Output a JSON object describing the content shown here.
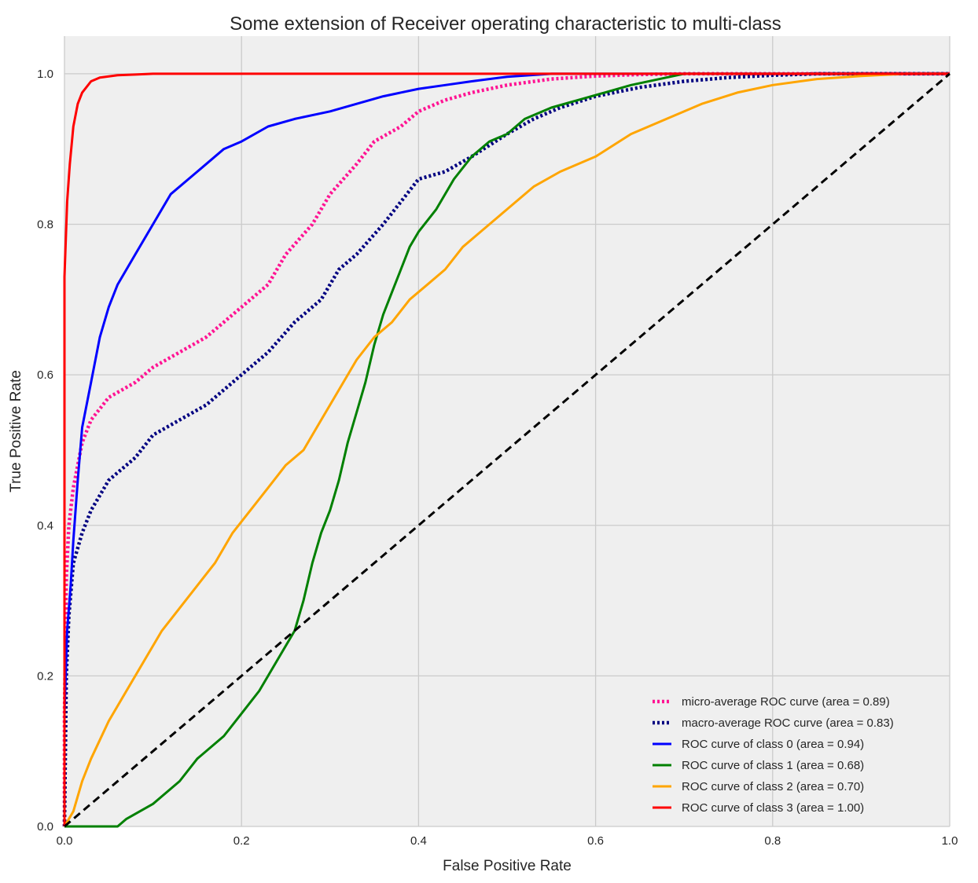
{
  "chart_data": {
    "type": "line",
    "title": "Some extension of Receiver operating characteristic to multi-class",
    "xlabel": "False Positive Rate",
    "ylabel": "True Positive Rate",
    "xlim": [
      0.0,
      1.0
    ],
    "ylim": [
      0.0,
      1.05
    ],
    "xticks": [
      0.0,
      0.2,
      0.4,
      0.6,
      0.8,
      1.0
    ],
    "yticks": [
      0.0,
      0.2,
      0.4,
      0.6,
      0.8,
      1.0
    ],
    "xtick_labels": [
      "0.0",
      "0.2",
      "0.4",
      "0.6",
      "0.8",
      "1.0"
    ],
    "ytick_labels": [
      "0.0",
      "0.2",
      "0.4",
      "0.6",
      "0.8",
      "1.0"
    ],
    "grid": true,
    "legend_position": "lower-right",
    "background": "#efefef",
    "series": [
      {
        "name": "micro-average ROC curve (area = 0.89)",
        "color": "#ff1493",
        "style": "dotted",
        "x": [
          0.0,
          0.0,
          0.002,
          0.005,
          0.01,
          0.015,
          0.02,
          0.03,
          0.05,
          0.08,
          0.1,
          0.13,
          0.16,
          0.18,
          0.2,
          0.23,
          0.25,
          0.28,
          0.3,
          0.33,
          0.35,
          0.38,
          0.4,
          0.43,
          0.46,
          0.5,
          0.55,
          0.6,
          0.65,
          0.7,
          0.75,
          0.8,
          0.9,
          1.0
        ],
        "y": [
          0.0,
          0.15,
          0.33,
          0.4,
          0.45,
          0.48,
          0.51,
          0.54,
          0.57,
          0.59,
          0.61,
          0.63,
          0.65,
          0.67,
          0.69,
          0.72,
          0.76,
          0.8,
          0.84,
          0.88,
          0.91,
          0.93,
          0.95,
          0.965,
          0.975,
          0.985,
          0.993,
          0.997,
          0.999,
          1.0,
          1.0,
          1.0,
          1.0,
          1.0
        ]
      },
      {
        "name": "macro-average ROC curve (area = 0.83)",
        "color": "#000080",
        "style": "dotted",
        "x": [
          0.0,
          0.002,
          0.005,
          0.01,
          0.02,
          0.03,
          0.05,
          0.08,
          0.1,
          0.13,
          0.16,
          0.2,
          0.23,
          0.26,
          0.29,
          0.31,
          0.33,
          0.36,
          0.38,
          0.4,
          0.43,
          0.46,
          0.5,
          0.53,
          0.56,
          0.6,
          0.65,
          0.7,
          0.75,
          0.8,
          0.85,
          0.9,
          1.0
        ],
        "y": [
          0.0,
          0.2,
          0.28,
          0.35,
          0.39,
          0.42,
          0.46,
          0.49,
          0.52,
          0.54,
          0.56,
          0.6,
          0.63,
          0.67,
          0.7,
          0.74,
          0.76,
          0.8,
          0.83,
          0.86,
          0.87,
          0.89,
          0.92,
          0.94,
          0.955,
          0.97,
          0.982,
          0.99,
          0.995,
          0.998,
          1.0,
          1.0,
          1.0
        ]
      },
      {
        "name": "ROC curve of class 0 (area = 0.94)",
        "color": "#0000ff",
        "style": "solid",
        "x": [
          0.0,
          0.0,
          0.003,
          0.007,
          0.01,
          0.015,
          0.02,
          0.03,
          0.04,
          0.05,
          0.06,
          0.08,
          0.1,
          0.12,
          0.15,
          0.18,
          0.2,
          0.23,
          0.26,
          0.3,
          0.33,
          0.36,
          0.4,
          0.43,
          0.46,
          0.5,
          0.55,
          0.6,
          0.65,
          0.7,
          1.0
        ],
        "y": [
          0.0,
          0.15,
          0.26,
          0.32,
          0.38,
          0.46,
          0.53,
          0.59,
          0.65,
          0.69,
          0.72,
          0.76,
          0.8,
          0.84,
          0.87,
          0.9,
          0.91,
          0.93,
          0.94,
          0.95,
          0.96,
          0.97,
          0.98,
          0.985,
          0.99,
          0.996,
          1.0,
          1.0,
          1.0,
          1.0,
          1.0
        ]
      },
      {
        "name": "ROC curve of class 1 (area = 0.68)",
        "color": "#008000",
        "style": "solid",
        "x": [
          0.0,
          0.06,
          0.07,
          0.1,
          0.13,
          0.15,
          0.18,
          0.2,
          0.22,
          0.24,
          0.26,
          0.27,
          0.28,
          0.29,
          0.3,
          0.31,
          0.32,
          0.33,
          0.34,
          0.35,
          0.36,
          0.37,
          0.38,
          0.39,
          0.4,
          0.42,
          0.44,
          0.46,
          0.48,
          0.5,
          0.52,
          0.55,
          0.58,
          0.61,
          0.64,
          0.68,
          0.7,
          0.8,
          0.9,
          1.0
        ],
        "y": [
          0.0,
          0.0,
          0.01,
          0.03,
          0.06,
          0.09,
          0.12,
          0.15,
          0.18,
          0.22,
          0.26,
          0.3,
          0.35,
          0.39,
          0.42,
          0.46,
          0.51,
          0.55,
          0.59,
          0.64,
          0.68,
          0.71,
          0.74,
          0.77,
          0.79,
          0.82,
          0.86,
          0.89,
          0.91,
          0.92,
          0.94,
          0.955,
          0.965,
          0.975,
          0.985,
          0.995,
          1.0,
          1.0,
          1.0,
          1.0
        ]
      },
      {
        "name": "ROC curve of class 2 (area = 0.70)",
        "color": "#ffa500",
        "style": "solid",
        "x": [
          0.0,
          0.01,
          0.02,
          0.03,
          0.05,
          0.07,
          0.09,
          0.11,
          0.13,
          0.15,
          0.17,
          0.19,
          0.21,
          0.23,
          0.25,
          0.27,
          0.29,
          0.31,
          0.33,
          0.35,
          0.37,
          0.39,
          0.41,
          0.43,
          0.45,
          0.47,
          0.5,
          0.53,
          0.56,
          0.6,
          0.64,
          0.68,
          0.72,
          0.76,
          0.8,
          0.85,
          0.9,
          0.95,
          1.0
        ],
        "y": [
          0.0,
          0.02,
          0.06,
          0.09,
          0.14,
          0.18,
          0.22,
          0.26,
          0.29,
          0.32,
          0.35,
          0.39,
          0.42,
          0.45,
          0.48,
          0.5,
          0.54,
          0.58,
          0.62,
          0.65,
          0.67,
          0.7,
          0.72,
          0.74,
          0.77,
          0.79,
          0.82,
          0.85,
          0.87,
          0.89,
          0.92,
          0.94,
          0.96,
          0.975,
          0.985,
          0.993,
          0.997,
          1.0,
          1.0
        ]
      },
      {
        "name": "ROC curve of class 3 (area = 1.00)",
        "color": "#ff0000",
        "style": "solid",
        "x": [
          0.0,
          0.0,
          0.003,
          0.006,
          0.01,
          0.015,
          0.02,
          0.03,
          0.04,
          0.06,
          0.08,
          0.1,
          0.2,
          0.3,
          0.5,
          0.7,
          1.0
        ],
        "y": [
          0.0,
          0.73,
          0.83,
          0.88,
          0.93,
          0.96,
          0.975,
          0.99,
          0.995,
          0.998,
          0.999,
          1.0,
          1.0,
          1.0,
          1.0,
          1.0,
          1.0
        ]
      },
      {
        "name": "",
        "color": "#000000",
        "style": "dashed",
        "x": [
          0.0,
          1.0
        ],
        "y": [
          0.0,
          1.0
        ]
      }
    ]
  }
}
